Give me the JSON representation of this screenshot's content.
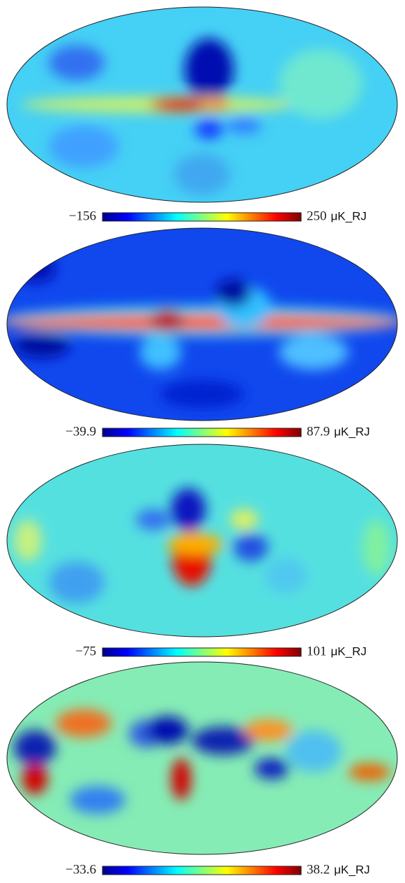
{
  "maps": [
    {
      "min": "−156",
      "max": "250",
      "unit": "μK_RJ"
    },
    {
      "min": "−39.9",
      "max": "87.9",
      "unit": "μK_RJ"
    },
    {
      "min": "−75",
      "max": "101",
      "unit": "μK_RJ"
    },
    {
      "min": "−33.6",
      "max": "38.2",
      "unit": "μK_RJ"
    }
  ]
}
